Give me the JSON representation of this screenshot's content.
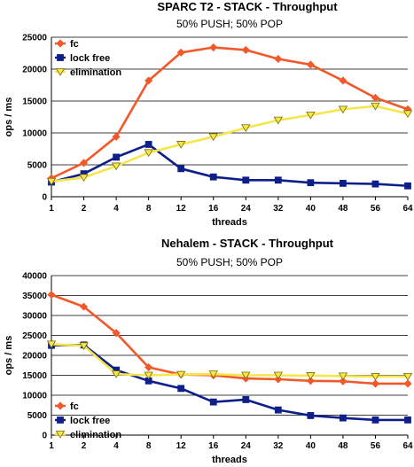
{
  "chart_data": [
    {
      "type": "line",
      "title": "SPARC T2 - STACK - Throughput",
      "subtitle": "50% PUSH; 50% POP",
      "xlabel": "threads",
      "ylabel": "ops / ms",
      "ylim": [
        0,
        25000
      ],
      "yticks": [
        0,
        5000,
        10000,
        15000,
        20000,
        25000
      ],
      "categories": [
        "1",
        "2",
        "4",
        "8",
        "12",
        "16",
        "24",
        "32",
        "40",
        "48",
        "56",
        "64"
      ],
      "grid": "horizontal",
      "legend": "top-left",
      "series": [
        {
          "name": "fc",
          "color": "#f2592a",
          "marker": "diamond",
          "values": [
            2900,
            5300,
            9400,
            18200,
            22600,
            23400,
            23000,
            21600,
            20700,
            18200,
            15500,
            13700
          ]
        },
        {
          "name": "lock free",
          "color": "#0f1f8a",
          "marker": "square",
          "values": [
            2300,
            3600,
            6200,
            8200,
            4400,
            3100,
            2600,
            2600,
            2200,
            2100,
            2000,
            1700
          ]
        },
        {
          "name": "elimination",
          "color": "#f5e64b",
          "marker": "triangle-down",
          "values": [
            2400,
            3000,
            4800,
            6900,
            8200,
            9400,
            10800,
            12000,
            12800,
            13700,
            14200,
            13000
          ]
        }
      ]
    },
    {
      "type": "line",
      "title": "Nehalem - STACK - Throughput",
      "subtitle": "50% PUSH; 50% POP",
      "xlabel": "threads",
      "ylabel": "ops / ms",
      "ylim": [
        0,
        40000
      ],
      "yticks": [
        0,
        5000,
        10000,
        15000,
        20000,
        25000,
        30000,
        35000,
        40000
      ],
      "categories": [
        "1",
        "2",
        "4",
        "8",
        "12",
        "16",
        "24",
        "32",
        "40",
        "48",
        "56",
        "64"
      ],
      "grid": "horizontal",
      "legend": "bottom-left",
      "series": [
        {
          "name": "fc",
          "color": "#f2592a",
          "marker": "diamond",
          "values": [
            35200,
            32200,
            25600,
            17000,
            15200,
            15000,
            14200,
            14000,
            13600,
            13500,
            12900,
            12900
          ]
        },
        {
          "name": "lock free",
          "color": "#0f1f8a",
          "marker": "square",
          "values": [
            22500,
            22600,
            16300,
            13600,
            11700,
            8300,
            8900,
            6300,
            4900,
            4300,
            3800,
            3800
          ]
        },
        {
          "name": "elimination",
          "color": "#f5e64b",
          "marker": "triangle-down",
          "values": [
            22800,
            22400,
            15300,
            15000,
            15200,
            15300,
            15000,
            15000,
            14900,
            14800,
            14700,
            14700
          ]
        }
      ]
    }
  ]
}
